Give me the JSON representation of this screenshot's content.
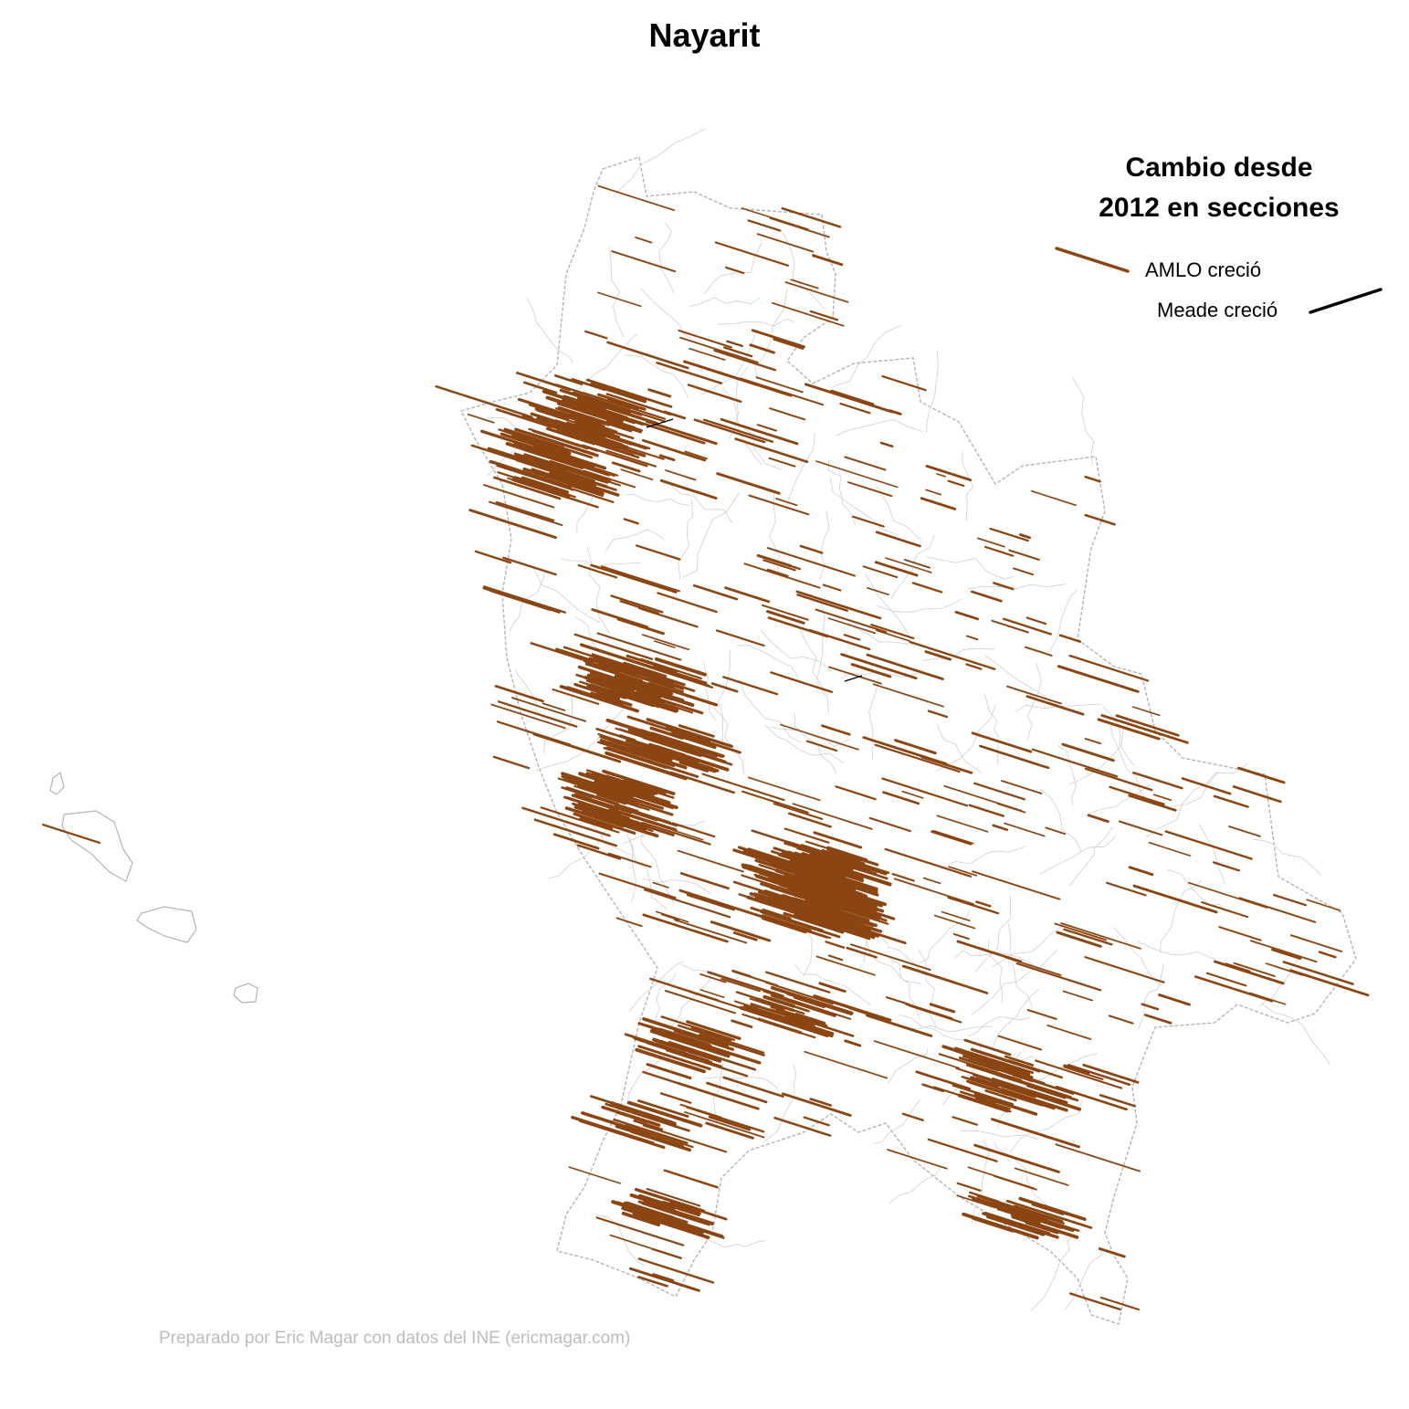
{
  "title": "Nayarit",
  "legend": {
    "title_line1": "Cambio desde",
    "title_line2": "2012 en secciones",
    "amlo_label": "AMLO creció",
    "meade_label": "Meade creció"
  },
  "credit": "Preparado por Eric Magar con datos del INE (ericmagar.com)",
  "colors": {
    "amlo": "#8b4513",
    "meade": "#000000",
    "border_municipal": "#c8c8c8",
    "border_state": "#b4b4b4",
    "credit": "#bdbdbd"
  }
}
